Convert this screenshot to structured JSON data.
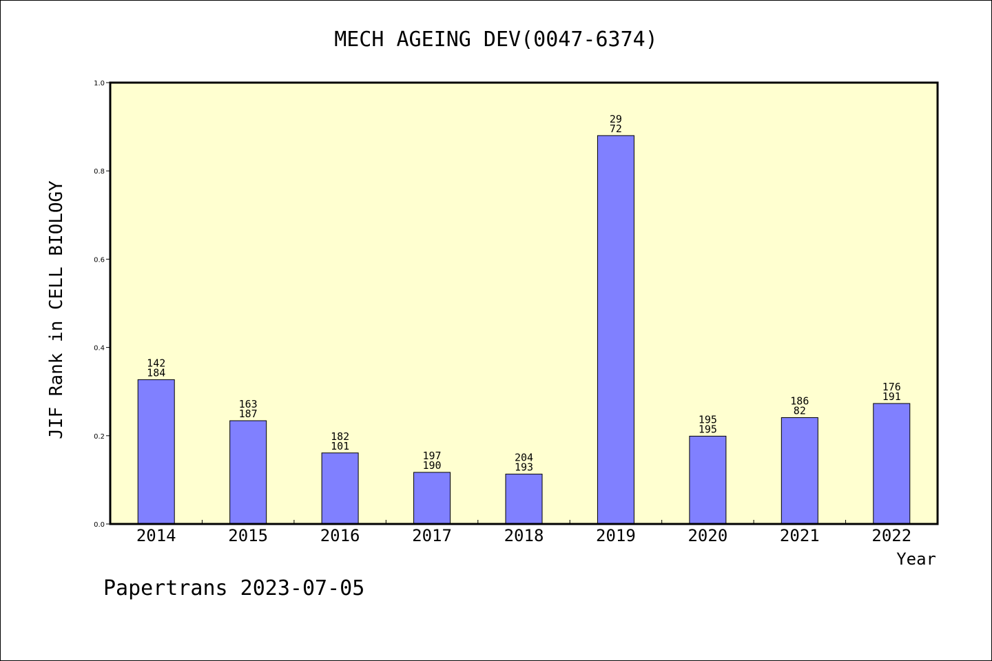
{
  "chart_data": {
    "type": "bar",
    "title": "MECH AGEING DEV(0047-6374)",
    "xlabel": "Year",
    "ylabel": "JIF Rank in CELL BIOLOGY",
    "ylim": [
      0,
      1.0
    ],
    "yticks": [
      "0.0",
      "0.2",
      "0.4",
      "0.6",
      "0.8",
      "1.0"
    ],
    "categories": [
      "2014",
      "2015",
      "2016",
      "2017",
      "2018",
      "2019",
      "2020",
      "2021",
      "2022"
    ],
    "values": [
      0.327,
      0.234,
      0.161,
      0.117,
      0.113,
      0.88,
      0.199,
      0.241,
      0.273
    ],
    "labels_top": [
      "142",
      "163",
      "182",
      "197",
      "204",
      "29",
      "195",
      "186",
      "176"
    ],
    "labels_bottom": [
      "184",
      "187",
      "101",
      "190",
      "193",
      "72",
      "195",
      "82",
      "191"
    ],
    "grid": false,
    "colors": {
      "bar": "#8080ff",
      "plot_background": "#ffffd0",
      "axis": "#000000"
    }
  },
  "footer": "Papertrans 2023-07-05"
}
